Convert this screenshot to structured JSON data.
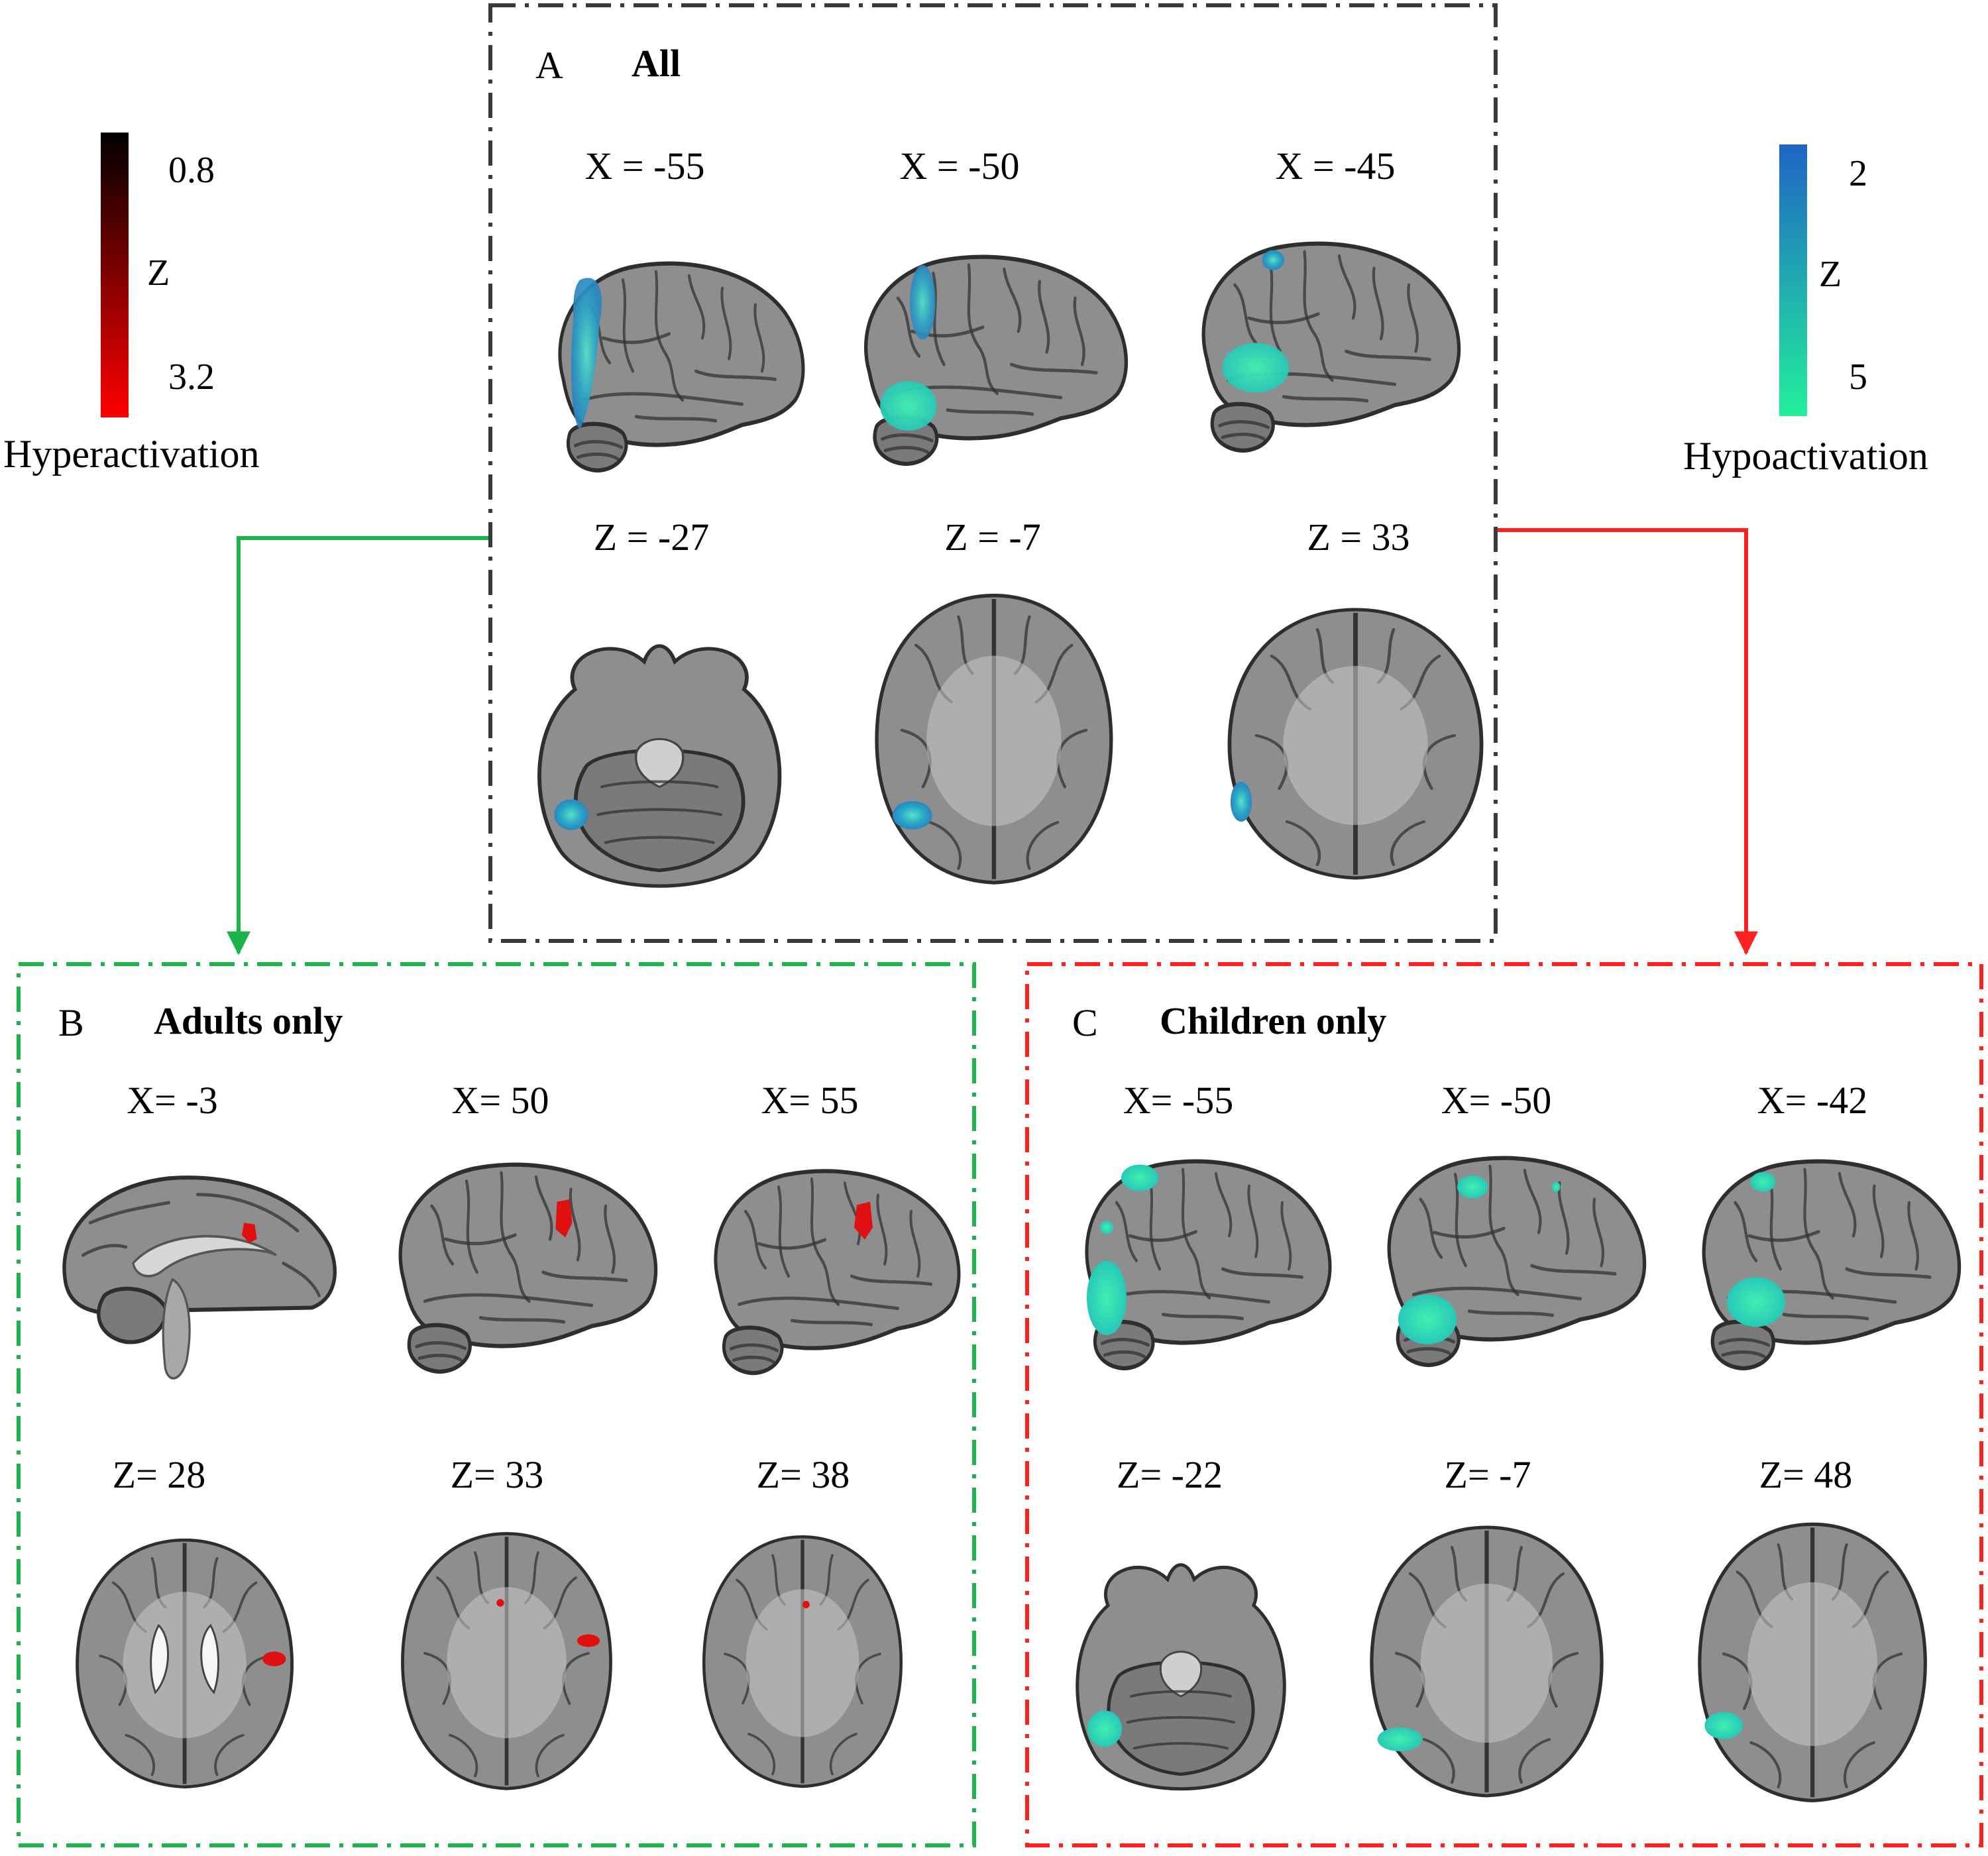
{
  "colorbars": {
    "hyper": {
      "top": "0.8",
      "mid": "Z",
      "bottom": "3.2",
      "caption": "Hyperactivation",
      "color_top": "#000000",
      "color_bottom": "#ff0000"
    },
    "hypo": {
      "top": "2",
      "mid": "Z",
      "bottom": "5",
      "caption": "Hypoactivation",
      "color_top": "#1f64c4",
      "color_bottom": "#22f09a"
    }
  },
  "panels": {
    "A": {
      "letter": "A",
      "title": "All",
      "border_color": "#3a3a3a",
      "sagittal": [
        "X = -55",
        "X = -50",
        "X = -45"
      ],
      "axial": [
        "Z = -27",
        "Z = -7",
        "Z = 33"
      ]
    },
    "B": {
      "letter": "B",
      "title": "Adults only",
      "border_color": "#1db34b",
      "sagittal": [
        "X= -3",
        "X= 50",
        "X= 55"
      ],
      "axial": [
        "Z= 28",
        "Z= 33",
        "Z= 38"
      ]
    },
    "C": {
      "letter": "C",
      "title": "Children only",
      "border_color": "#ff2020",
      "sagittal": [
        "X= -55",
        "X= -50",
        "X= -42"
      ],
      "axial": [
        "Z= -22",
        "Z= -7",
        "Z= 48"
      ]
    }
  },
  "colors": {
    "hyper_blob": "#e01010",
    "hypo_blob_a": "#2aa6c6",
    "hypo_blob_c": "#2fd9b0",
    "arrow_left": "#1db34b",
    "arrow_right": "#ff2020"
  }
}
